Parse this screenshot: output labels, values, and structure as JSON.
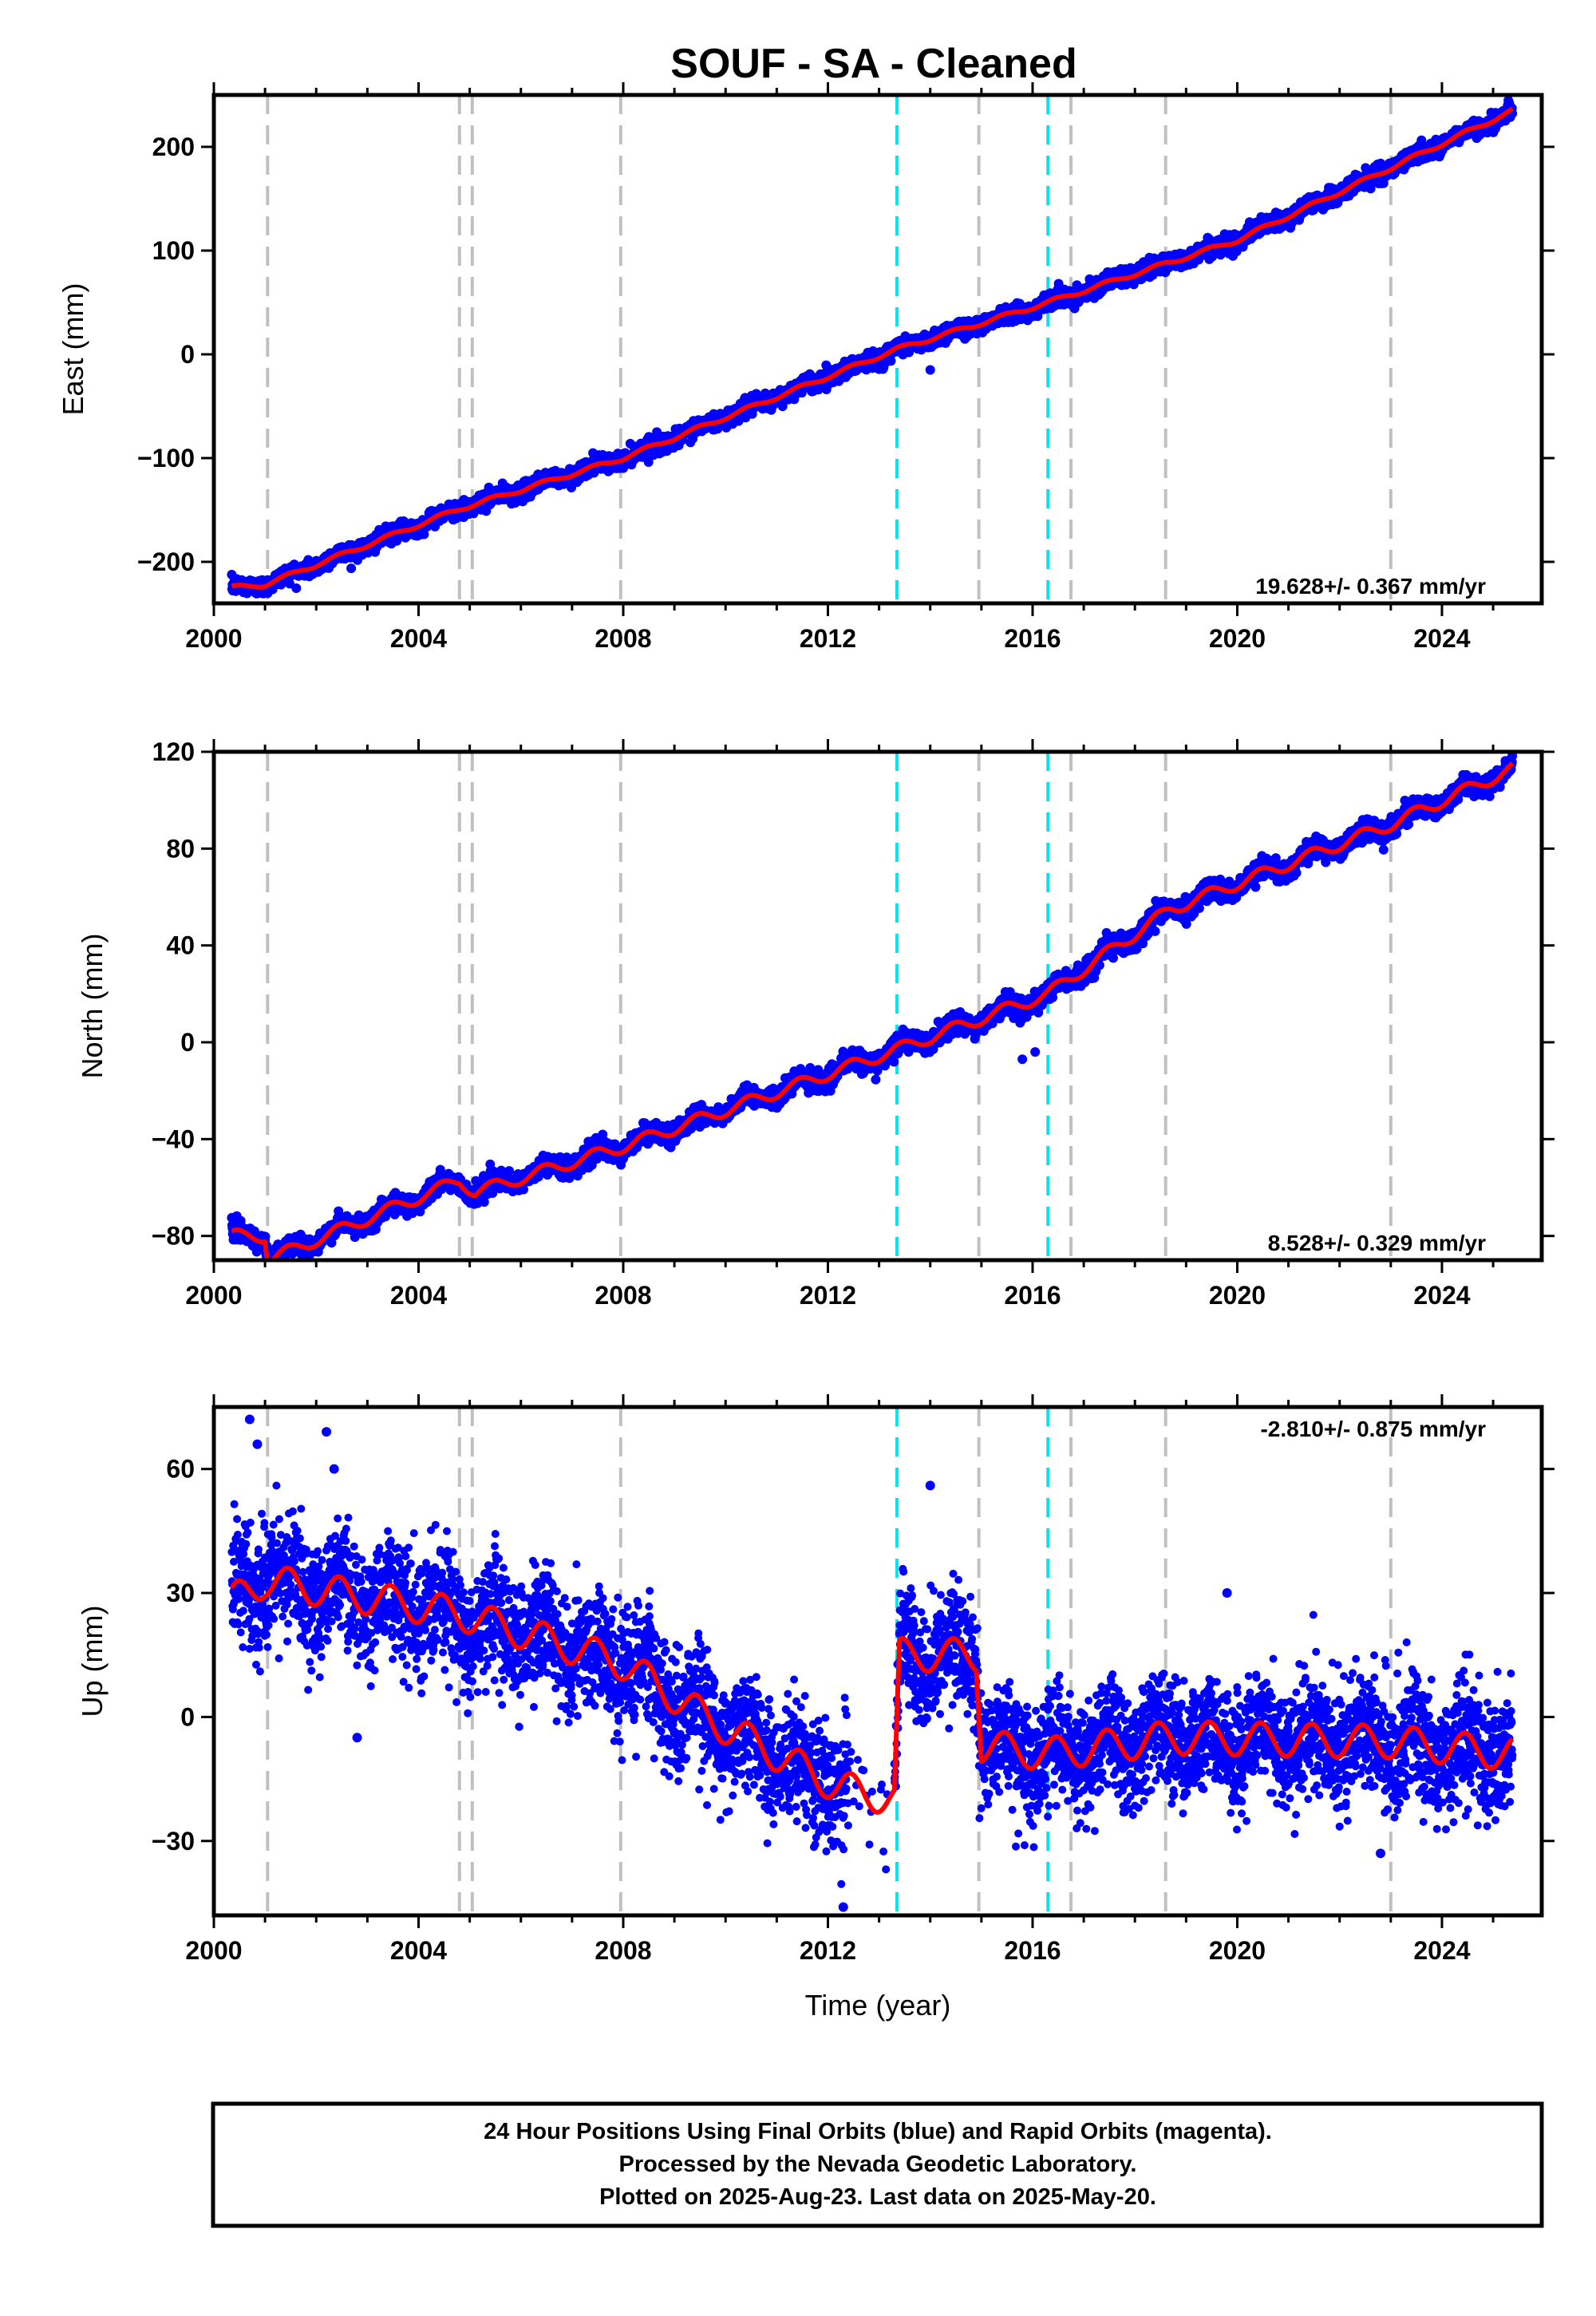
{
  "title": "SOUF  - SA - Cleaned",
  "footer": {
    "lines": [
      "24 Hour Positions Using Final Orbits (blue) and Rapid Orbits (magenta).",
      "Processed by the Nevada Geodetic Laboratory.",
      "Plotted on 2025-Aug-23. Last data on 2025-May-20."
    ]
  },
  "colors": {
    "data_points": "#0000ff",
    "model_fit": "#ff0000",
    "equipment_change_lines": "#c0c0c0",
    "earthquake_lines": "#00e5ee"
  },
  "chart_data": [
    {
      "type": "scatter",
      "panel": "east",
      "ylabel": "East (mm)",
      "xlabel": "",
      "xlim": [
        2000.0,
        2025.95
      ],
      "ylim": [
        -240,
        250
      ],
      "x_ticks": [
        2000,
        2004,
        2008,
        2012,
        2016,
        2020,
        2024
      ],
      "x_tick_labels": [
        "2000",
        "2004",
        "2008",
        "2012",
        "2016",
        "2020",
        "2024"
      ],
      "y_ticks": [
        -200,
        -100,
        0,
        100,
        200
      ],
      "y_tick_labels": [
        "−200",
        "−100",
        "0",
        "100",
        "200"
      ],
      "rate_label": "19.628+/- 0.367 mm/yr",
      "rate_label_position": "bottom-right",
      "data_start": 2000.35,
      "data_end": 2025.38,
      "trend_points": {
        "x": [
          2000.35,
          2001.0,
          2004.8,
          2008.0,
          2013.35,
          2016.3,
          2020.0,
          2025.38
        ],
        "y": [
          -225,
          -222,
          -149,
          -100,
          5,
          50,
          110,
          235
        ]
      },
      "offsets": [
        {
          "x": 2013.37,
          "y_before": 5,
          "y_after": -7
        }
      ],
      "seasonal_amplitude": 2,
      "scatter_sd": 4,
      "outliers": [
        {
          "x": 2014.0,
          "y": -15
        }
      ]
    },
    {
      "type": "scatter",
      "panel": "north",
      "ylabel": "North (mm)",
      "xlabel": "",
      "xlim": [
        2000.0,
        2025.95
      ],
      "ylim": [
        -90,
        120
      ],
      "x_ticks": [
        2000,
        2004,
        2008,
        2012,
        2016,
        2020,
        2024
      ],
      "x_tick_labels": [
        "2000",
        "2004",
        "2008",
        "2012",
        "2016",
        "2020",
        "2024"
      ],
      "y_ticks": [
        -80,
        -40,
        0,
        40,
        80,
        120
      ],
      "y_tick_labels": [
        "−80",
        "−40",
        "0",
        "40",
        "80",
        "120"
      ],
      "rate_label": "8.528+/- 0.329 mm/yr",
      "rate_label_position": "bottom-right",
      "data_start": 2000.35,
      "data_end": 2025.38,
      "trend_points": {
        "x": [
          2000.35,
          2001.0,
          2001.05,
          2004.8,
          2005.1,
          2008.0,
          2013.35,
          2016.3,
          2018.7,
          2023.0,
          2025.38
        ],
        "y": [
          -80,
          -80,
          -90,
          -57,
          -62,
          -43,
          -3,
          20,
          55,
          90,
          113
        ]
      },
      "offsets": [
        {
          "x": 2001.05,
          "y_before": -80,
          "y_after": -90
        },
        {
          "x": 2005.1,
          "y_before": -56,
          "y_after": -62
        }
      ],
      "seasonal_amplitude": 2.5,
      "scatter_sd": 2,
      "outliers": [
        {
          "x": 2016.05,
          "y": -4
        },
        {
          "x": 2015.8,
          "y": -7
        }
      ]
    },
    {
      "type": "scatter",
      "panel": "up",
      "ylabel": "Up (mm)",
      "xlabel": "Time (year)",
      "xlim": [
        2000.0,
        2025.95
      ],
      "ylim": [
        -48,
        75
      ],
      "x_ticks": [
        2000,
        2004,
        2008,
        2012,
        2016,
        2020,
        2024
      ],
      "x_tick_labels": [
        "2000",
        "2004",
        "2008",
        "2012",
        "2016",
        "2020",
        "2024"
      ],
      "y_ticks": [
        -30,
        0,
        30,
        60
      ],
      "y_tick_labels": [
        "−30",
        "0",
        "30",
        "60"
      ],
      "rate_label": "-2.810+/- 0.875 mm/yr",
      "rate_label_position": "top-right",
      "data_start": 2000.35,
      "data_end": 2025.38,
      "trend_points": {
        "x": [
          2000.35,
          2001.0,
          2004.8,
          2008.0,
          2009.6,
          2012.2,
          2013.3,
          2013.4,
          2014.9,
          2015.0,
          2016.3,
          2018.7,
          2023.0,
          2025.38
        ],
        "y": [
          28,
          33,
          25,
          13,
          0,
          -17,
          -20,
          15,
          15,
          -7,
          -9,
          -5,
          -6,
          -9
        ]
      },
      "offsets": [
        {
          "x": 2013.37,
          "y_before": -22,
          "y_after": 14
        },
        {
          "x": 2014.95,
          "y_before": 16,
          "y_after": -6
        }
      ],
      "seasonal_amplitude": 4,
      "scatter_sd": 7,
      "outliers": [
        {
          "x": 2000.7,
          "y": 72
        },
        {
          "x": 2000.85,
          "y": 66
        },
        {
          "x": 2002.2,
          "y": 69
        },
        {
          "x": 2002.35,
          "y": 60
        },
        {
          "x": 2014.0,
          "y": 56
        },
        {
          "x": 2019.8,
          "y": 30
        },
        {
          "x": 2022.8,
          "y": -33
        },
        {
          "x": 2012.3,
          "y": -46
        },
        {
          "x": 2002.8,
          "y": -5
        }
      ]
    }
  ],
  "reference_lines": {
    "equipment_changes": [
      2001.05,
      2004.8,
      2005.05,
      2007.95,
      2014.95,
      2016.75,
      2018.6,
      2023.0
    ],
    "earthquakes": [
      2013.35,
      2016.3
    ]
  }
}
